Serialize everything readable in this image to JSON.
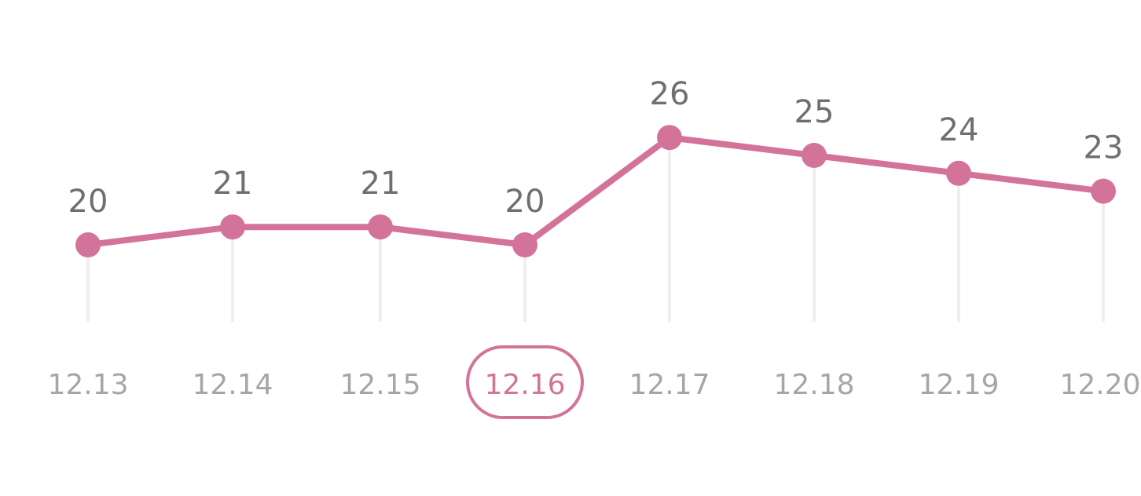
{
  "colors": {
    "accent": "#d4739a",
    "value_text": "#6f6f6f",
    "axis_text": "#a6a6a6",
    "guide": "#efefef"
  },
  "chart_data": {
    "type": "line",
    "categories": [
      "12.13",
      "12.14",
      "12.15",
      "12.16",
      "12.17",
      "12.18",
      "12.19",
      "12.20"
    ],
    "series": [
      {
        "values": [
          20,
          21,
          21,
          20,
          26,
          25,
          24,
          23
        ]
      }
    ],
    "selected_category": "12.16",
    "grid": false,
    "legend": "none",
    "data_labels": true
  }
}
